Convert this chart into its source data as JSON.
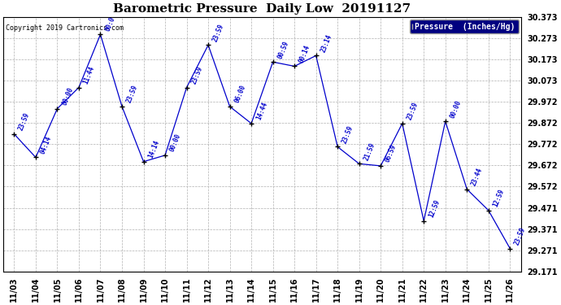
{
  "title": "Barometric Pressure  Daily Low  20191127",
  "copyright": "Copyright 2019 Cartronics.com",
  "legend_label": "Pressure  (Inches/Hg)",
  "line_color": "#0000cc",
  "marker_color": "#000000",
  "background_color": "#ffffff",
  "grid_color": "#b0b0b0",
  "x_labels": [
    "11/03",
    "11/04",
    "11/05",
    "11/06",
    "11/07",
    "11/08",
    "11/09",
    "11/10",
    "11/11",
    "11/12",
    "11/13",
    "11/14",
    "11/15",
    "11/16",
    "11/17",
    "11/18",
    "11/19",
    "11/20",
    "11/21",
    "11/22",
    "11/23",
    "11/24",
    "11/25",
    "11/26"
  ],
  "y_ticks": [
    29.171,
    29.271,
    29.371,
    29.471,
    29.572,
    29.672,
    29.772,
    29.872,
    29.972,
    30.073,
    30.173,
    30.273,
    30.373
  ],
  "pressure": [
    29.82,
    29.71,
    29.94,
    30.04,
    30.29,
    29.95,
    29.69,
    29.72,
    30.04,
    30.24,
    29.95,
    29.87,
    30.16,
    30.14,
    30.19,
    29.76,
    29.68,
    29.67,
    29.87,
    29.41,
    29.88,
    29.56,
    29.46,
    29.28
  ],
  "time_labels": [
    "23:59",
    "04:14",
    "00:00",
    "11:44",
    "00:0",
    "23:59",
    "14:14",
    "00:00",
    "23:59",
    "23:59",
    "06:00",
    "14:44",
    "00:59",
    "00:14",
    "23:14",
    "23:59",
    "21:59",
    "06:59",
    "23:59",
    "12:59",
    "00:00",
    "23:44",
    "12:59",
    "23:59"
  ],
  "ylim_min": 29.171,
  "ylim_max": 30.373,
  "figwidth": 6.9,
  "figheight": 3.75,
  "dpi": 100
}
